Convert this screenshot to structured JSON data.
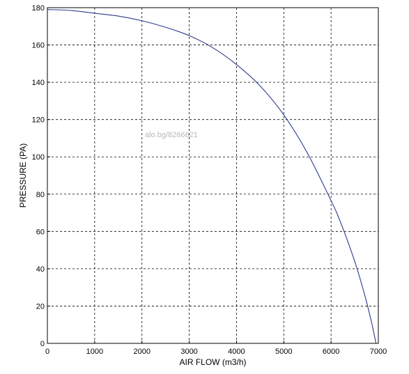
{
  "chart_data": {
    "type": "line",
    "xlabel": "AIR FLOW (m3/h)",
    "ylabel": "PRESSURE (PA)",
    "xlim": [
      0,
      7000
    ],
    "ylim": [
      0,
      180
    ],
    "x_ticks": [
      0,
      1000,
      2000,
      3000,
      4000,
      5000,
      6000,
      7000
    ],
    "y_ticks": [
      0,
      20,
      40,
      60,
      80,
      100,
      120,
      140,
      160,
      180
    ],
    "grid": true,
    "line_color": "#2b3a8c",
    "series": [
      {
        "x": [
          0,
          500,
          1000,
          1500,
          2000,
          2500,
          3000,
          3500,
          4000,
          4500,
          5000,
          5500,
          6000,
          6200,
          6500,
          6700,
          6850,
          6950
        ],
        "y": [
          179,
          178.5,
          177,
          175.5,
          173,
          169.5,
          165,
          158.5,
          149.5,
          138,
          122.5,
          102,
          76.5,
          65,
          44,
          27,
          12,
          0
        ]
      }
    ]
  },
  "watermark": "alo.bg/8266621"
}
